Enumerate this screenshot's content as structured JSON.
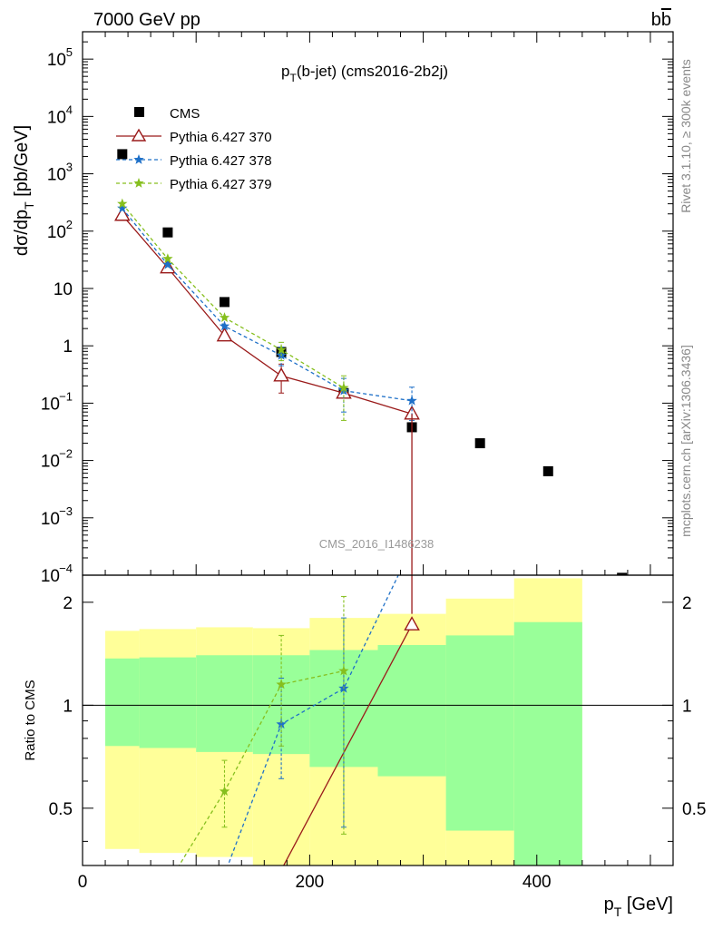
{
  "header": {
    "energy": "7000 GeV pp",
    "process_base": "b",
    "process_bar": "b"
  },
  "watermark": "CMS_2016_I1486238",
  "side_labels": {
    "top": "Rivet 3.1.10, ≥ 300k events",
    "bottom": "mcplots.cern.ch [arXiv:1306.3436]"
  },
  "colors": {
    "cms": "#000000",
    "p370": "#9a1a1a",
    "p378": "#1e70c8",
    "p379": "#86bf1e",
    "band_outer": "#ffff99",
    "band_inner": "#99ff99"
  },
  "chart_data": [
    {
      "type": "scatter",
      "title_main": "p",
      "title_sub": "T",
      "title_rest": "(b-jet) (cms2016-2b2j)",
      "ylabel": {
        "pre": "dσ/dp",
        "sub": "T",
        "post": " [pb/GeV]"
      },
      "yscale": "log",
      "ylim": [
        0.0001,
        300000
      ],
      "xlim": [
        0,
        520
      ],
      "yticks": [
        {
          "v": 100000,
          "mant": "10",
          "exp": "5"
        },
        {
          "v": 10000,
          "mant": "10",
          "exp": "4"
        },
        {
          "v": 1000,
          "mant": "10",
          "exp": "3"
        },
        {
          "v": 100,
          "mant": "10",
          "exp": "2"
        },
        {
          "v": 10,
          "mant": "10",
          "exp": ""
        },
        {
          "v": 1,
          "mant": "1",
          "exp": ""
        },
        {
          "v": 0.1,
          "mant": "10",
          "exp": "−1"
        },
        {
          "v": 0.01,
          "mant": "10",
          "exp": "−2"
        },
        {
          "v": 0.001,
          "mant": "10",
          "exp": "−3"
        },
        {
          "v": 0.0001,
          "mant": "10",
          "exp": "−4"
        }
      ],
      "legend_position": "top-left",
      "series": [
        {
          "name": "CMS",
          "marker": "square",
          "points": [
            {
              "x": 35,
              "y": 2200
            },
            {
              "x": 75,
              "y": 95
            },
            {
              "x": 125,
              "y": 5.8
            },
            {
              "x": 175,
              "y": 0.78
            },
            {
              "x": 230,
              "y": 0.15
            },
            {
              "x": 290,
              "y": 0.038
            },
            {
              "x": 350,
              "y": 0.02
            },
            {
              "x": 410,
              "y": 0.0065
            },
            {
              "x": 475,
              "y": 9e-05
            }
          ]
        },
        {
          "name": "Pythia 6.427 370",
          "marker": "triangle",
          "line": "solid",
          "points": [
            {
              "x": 35,
              "y": 190
            },
            {
              "x": 75,
              "y": 23
            },
            {
              "x": 125,
              "y": 1.5
            },
            {
              "x": 175,
              "y": 0.3,
              "err": [
                0.15,
                0.48
              ]
            },
            {
              "x": 230,
              "y": 0.15
            },
            {
              "x": 290,
              "y": 0.065
            }
          ]
        },
        {
          "name": "Pythia 6.427 378",
          "marker": "star",
          "line": "dashed",
          "points": [
            {
              "x": 35,
              "y": 250
            },
            {
              "x": 75,
              "y": 26
            },
            {
              "x": 125,
              "y": 2.2
            },
            {
              "x": 175,
              "y": 0.68,
              "err": [
                0.45,
                0.95
              ]
            },
            {
              "x": 230,
              "y": 0.165,
              "err": [
                0.07,
                0.27
              ]
            },
            {
              "x": 290,
              "y": 0.11,
              "err": [
                0.05,
                0.19
              ]
            }
          ]
        },
        {
          "name": "Pythia 6.427 379",
          "marker": "star",
          "line": "dashed",
          "points": [
            {
              "x": 35,
              "y": 300
            },
            {
              "x": 75,
              "y": 33
            },
            {
              "x": 125,
              "y": 3.1
            },
            {
              "x": 175,
              "y": 0.85,
              "err": [
                0.55,
                1.15
              ]
            },
            {
              "x": 230,
              "y": 0.185,
              "err": [
                0.05,
                0.3
              ]
            }
          ]
        }
      ]
    },
    {
      "type": "line",
      "ylabel": "Ratio to CMS",
      "xlabel": {
        "main": "p",
        "sub": "T",
        "post": " [GeV]"
      },
      "yscale": "log",
      "ylim": [
        0.34,
        2.4
      ],
      "xlim": [
        0,
        520
      ],
      "xticks": [
        0,
        200,
        400
      ],
      "yticks": [
        {
          "v": 2,
          "label": "2"
        },
        {
          "v": 1,
          "label": "1"
        },
        {
          "v": 0.5,
          "label": "0.5"
        }
      ],
      "reference_line": 1,
      "bands": [
        {
          "x0": 20,
          "x1": 50,
          "outer": [
            0.38,
            1.65
          ],
          "inner": [
            0.76,
            1.37
          ]
        },
        {
          "x0": 50,
          "x1": 100,
          "outer": [
            0.37,
            1.67
          ],
          "inner": [
            0.75,
            1.38
          ]
        },
        {
          "x0": 100,
          "x1": 150,
          "outer": [
            0.36,
            1.69
          ],
          "inner": [
            0.73,
            1.4
          ]
        },
        {
          "x0": 150,
          "x1": 200,
          "outer": [
            0.34,
            1.68
          ],
          "inner": [
            0.72,
            1.4
          ]
        },
        {
          "x0": 200,
          "x1": 260,
          "outer": [
            0.34,
            1.8
          ],
          "inner": [
            0.66,
            1.45
          ]
        },
        {
          "x0": 260,
          "x1": 320,
          "outer": [
            0.34,
            1.85
          ],
          "inner": [
            0.62,
            1.5
          ]
        },
        {
          "x0": 320,
          "x1": 380,
          "outer": [
            0.34,
            2.05
          ],
          "inner": [
            0.43,
            1.6
          ]
        },
        {
          "x0": 380,
          "x1": 440,
          "outer": [
            0.34,
            2.35
          ],
          "inner": [
            0.34,
            1.75
          ]
        }
      ],
      "series": [
        {
          "name": "Pythia 6.427 370",
          "marker": "triangle",
          "line": "solid",
          "points": [
            {
              "x": 175,
              "y": 0.33
            },
            {
              "x": 290,
              "y": 1.72
            }
          ]
        },
        {
          "name": "Pythia 6.427 378",
          "marker": "star",
          "line": "dashed",
          "points": [
            {
              "x": 125,
              "y": 0.32
            },
            {
              "x": 175,
              "y": 0.88,
              "err": [
                0.61,
                1.2
              ]
            },
            {
              "x": 230,
              "y": 1.12,
              "err": [
                0.44,
                1.8
              ]
            },
            {
              "x": 290,
              "y": 2.9
            }
          ]
        },
        {
          "name": "Pythia 6.427 379",
          "marker": "star",
          "line": "dashed",
          "points": [
            {
              "x": 75,
              "y": 0.3
            },
            {
              "x": 125,
              "y": 0.56,
              "err": [
                0.44,
                0.69
              ]
            },
            {
              "x": 175,
              "y": 1.15,
              "err": [
                0.76,
                1.6
              ]
            },
            {
              "x": 230,
              "y": 1.26,
              "err": [
                0.42,
                2.08
              ]
            }
          ]
        }
      ]
    }
  ]
}
